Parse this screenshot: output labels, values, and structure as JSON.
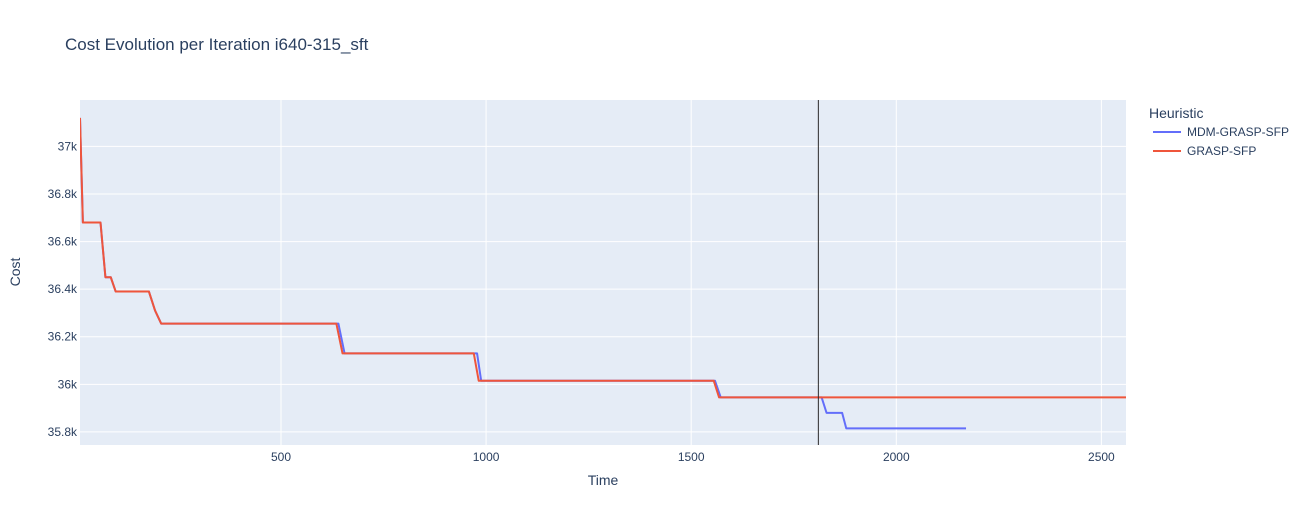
{
  "chart_data": {
    "type": "line",
    "title": "Cost Evolution per Iteration i640-315_sft",
    "xlabel": "Time",
    "ylabel": "Cost",
    "xlim": [
      10,
      2560
    ],
    "ylim": [
      35745,
      37195
    ],
    "x_ticks": [
      500,
      1000,
      1500,
      2000,
      2500
    ],
    "y_ticks": [
      {
        "value": 35800,
        "label": "35.8k"
      },
      {
        "value": 36000,
        "label": "36k"
      },
      {
        "value": 36200,
        "label": "36.2k"
      },
      {
        "value": 36400,
        "label": "36.4k"
      },
      {
        "value": 36600,
        "label": "36.6k"
      },
      {
        "value": 36800,
        "label": "36.8k"
      },
      {
        "value": 37000,
        "label": "37k"
      }
    ],
    "grid": true,
    "legend": {
      "title": "Heuristic",
      "placement": "right"
    },
    "vertical_line": {
      "x": 1810,
      "color": "#2a2a2a"
    },
    "series": [
      {
        "name": "MDM-GRASP-SFP",
        "color": "#636efa",
        "points": [
          [
            10,
            37120
          ],
          [
            17,
            36680
          ],
          [
            60,
            36680
          ],
          [
            72,
            36450
          ],
          [
            85,
            36450
          ],
          [
            97,
            36390
          ],
          [
            178,
            36390
          ],
          [
            193,
            36310
          ],
          [
            208,
            36255
          ],
          [
            640,
            36255
          ],
          [
            655,
            36130
          ],
          [
            978,
            36130
          ],
          [
            988,
            36015
          ],
          [
            1558,
            36015
          ],
          [
            1572,
            35945
          ],
          [
            1818,
            35945
          ],
          [
            1830,
            35880
          ],
          [
            1868,
            35880
          ],
          [
            1878,
            35815
          ],
          [
            2170,
            35815
          ]
        ]
      },
      {
        "name": "GRASP-SFP",
        "color": "#ef553b",
        "points": [
          [
            10,
            37120
          ],
          [
            17,
            36680
          ],
          [
            60,
            36680
          ],
          [
            72,
            36450
          ],
          [
            85,
            36450
          ],
          [
            97,
            36390
          ],
          [
            178,
            36390
          ],
          [
            193,
            36310
          ],
          [
            208,
            36255
          ],
          [
            635,
            36255
          ],
          [
            650,
            36130
          ],
          [
            970,
            36130
          ],
          [
            982,
            36015
          ],
          [
            1555,
            36015
          ],
          [
            1568,
            35945
          ],
          [
            2560,
            35945
          ]
        ]
      }
    ]
  }
}
